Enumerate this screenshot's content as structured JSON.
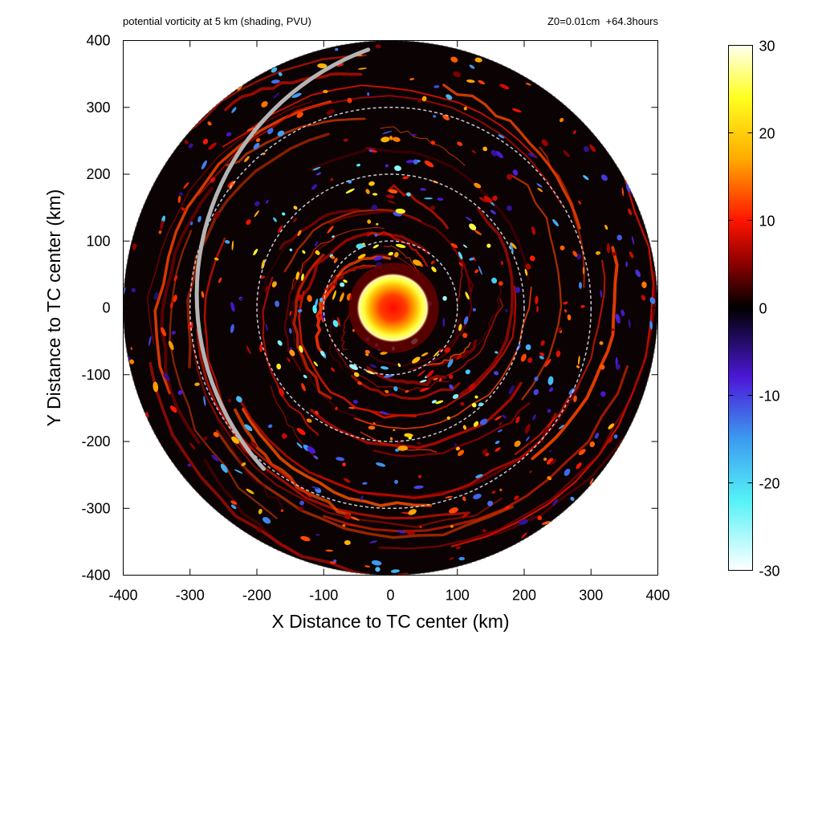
{
  "chart_data": {
    "type": "heatmap",
    "title_left": "potential vorticity at 5 km (shading, PVU)",
    "title_right": "Z0=0.01cm  +64.3hours",
    "xlabel": "X Distance to TC center (km)",
    "ylabel": "Y Distance to TC center (km)",
    "xlim": [
      -400,
      400
    ],
    "ylim": [
      -400,
      400
    ],
    "xticks": [
      "-400",
      "-300",
      "-200",
      "-100",
      "0",
      "100",
      "200",
      "300",
      "400"
    ],
    "yticks": [
      "400",
      "300",
      "200",
      "100",
      "0",
      "-100",
      "-200",
      "-300",
      "-400"
    ],
    "x_tick_values": [
      -400,
      -300,
      -200,
      -100,
      0,
      100,
      200,
      300,
      400
    ],
    "y_tick_values": [
      400,
      300,
      200,
      100,
      0,
      -100,
      -200,
      -300,
      -400
    ],
    "domain_radius_km": 400,
    "range_rings_km": [
      100,
      200,
      300
    ],
    "colorbar": {
      "min": -30,
      "max": 30,
      "ticks": [
        "30",
        "20",
        "10",
        "0",
        "-10",
        "-20",
        "-30"
      ],
      "tick_values": [
        30,
        20,
        10,
        0,
        -10,
        -20,
        -30
      ],
      "colors": [
        "#ffffff",
        "#55f2f7",
        "#3c9bf0",
        "#4b18d8",
        "#000000",
        "#8a0000",
        "#ff1400",
        "#ffaa00",
        "#ffff1e",
        "#fffff0"
      ],
      "color_stops": [
        -30,
        -22,
        -15,
        -8,
        0,
        5,
        10,
        17,
        24,
        30
      ]
    },
    "core": {
      "peak_pv": 30,
      "eyewall_radius_km": 50
    },
    "grey_arc_color": "#b4b4b4",
    "ring_color": "#c8c8d2"
  }
}
